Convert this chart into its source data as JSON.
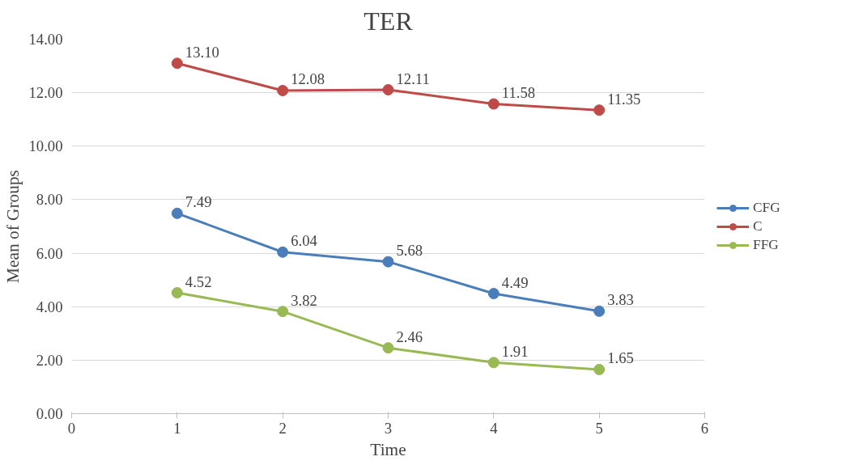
{
  "chart_data": {
    "type": "line",
    "title": "TER",
    "xlabel": "Time",
    "ylabel": "Mean of Groups",
    "x": [
      1,
      2,
      3,
      4,
      5
    ],
    "series": [
      {
        "name": "CFG",
        "color": "#4a7ebb",
        "values": [
          7.49,
          6.04,
          5.68,
          4.49,
          3.83
        ],
        "value_labels": [
          "7.49",
          "6.04",
          "5.68",
          "4.49",
          "3.83"
        ]
      },
      {
        "name": "C",
        "color": "#be4b48",
        "values": [
          13.1,
          12.08,
          12.11,
          11.58,
          11.35
        ],
        "value_labels": [
          "13.10",
          "12.08",
          "12.11",
          "11.58",
          "11.35"
        ]
      },
      {
        "name": "FFG",
        "color": "#98b954",
        "values": [
          4.52,
          3.82,
          2.46,
          1.91,
          1.65
        ],
        "value_labels": [
          "4.52",
          "3.82",
          "2.46",
          "1.91",
          "1.65"
        ]
      }
    ],
    "xlim": [
      0,
      6
    ],
    "xticks": [
      0,
      1,
      2,
      3,
      4,
      5,
      6
    ],
    "ylim": [
      0,
      14
    ],
    "yticks": [
      {
        "value": 0,
        "label": "0.00"
      },
      {
        "value": 2,
        "label": "2.00"
      },
      {
        "value": 4,
        "label": "4.00"
      },
      {
        "value": 6,
        "label": "6.00"
      },
      {
        "value": 8,
        "label": "8.00"
      },
      {
        "value": 10,
        "label": "10.00"
      },
      {
        "value": 12,
        "label": "12.00"
      },
      {
        "value": 14,
        "label": "14.00"
      }
    ],
    "grid": "y",
    "legend": "right",
    "marker": "circle",
    "line_style": "solid"
  }
}
